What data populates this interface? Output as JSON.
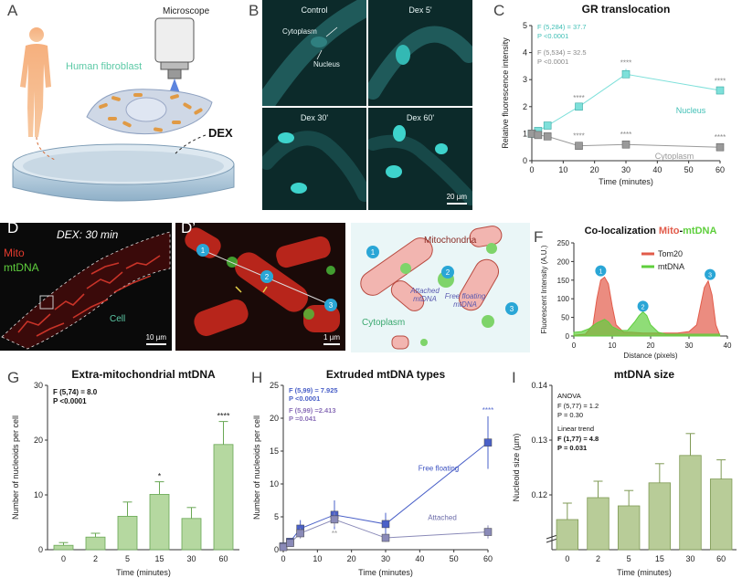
{
  "panel_letters": {
    "A": "A",
    "B": "B",
    "C": "C",
    "D": "D",
    "Dp": "D’",
    "E": "E",
    "F": "F",
    "G": "G",
    "H": "H",
    "I": "I"
  },
  "colors": {
    "nucleus": "#7ee0da",
    "cytoplasm": "#9a9a9a",
    "mito": "#e25b4a",
    "mtdna": "#5fcf3d",
    "free": "#4a60c8",
    "attached": "#8a8ab8",
    "bar": "#b5d8a0",
    "barI": "#b8cc98",
    "bg": "#eaf6f7"
  },
  "panelA": {
    "microscope": "Microscope",
    "fibroblast": "Human fibroblast",
    "dex": "DEX"
  },
  "panelB": {
    "captions": [
      "Control",
      "Dex 5'",
      "Dex 30'",
      "Dex 60'"
    ],
    "cytoplasm": "Cytoplasm",
    "nucleus": "Nucleus",
    "scale": "20 µm"
  },
  "panelD": {
    "title": "DEX: 30 min",
    "mito": "Mito",
    "mtdna": "mtDNA",
    "cell": "Cell",
    "scale": "10 µm",
    "scale2": "1 µm",
    "markers": [
      "1",
      "2",
      "3"
    ]
  },
  "panelE": {
    "mitochondria": "Mitochondria",
    "attached": "Attached mtDNA",
    "free": "Free floating mtDNA",
    "cytoplasm": "Cytoplasm",
    "markers": [
      "1",
      "2",
      "3"
    ]
  },
  "chart_data": [
    {
      "id": "C",
      "type": "line",
      "title": "GR translocation",
      "xlabel": "Time (minutes)",
      "ylabel": "Relative fluorescence intensity",
      "xlim": [
        0,
        60
      ],
      "ylim": [
        0,
        5
      ],
      "xticks": [
        0,
        10,
        20,
        30,
        40,
        50,
        60
      ],
      "yticks": [
        0,
        1,
        2,
        3,
        4,
        5
      ],
      "series": [
        {
          "name": "Nucleus",
          "x": [
            0,
            2,
            5,
            15,
            30,
            60
          ],
          "y": [
            1.0,
            1.1,
            1.3,
            2.0,
            3.2,
            2.6
          ],
          "err": [
            0.05,
            0.06,
            0.08,
            0.1,
            0.2,
            0.12
          ],
          "marks": [
            "",
            "",
            "",
            "****",
            "****",
            "****"
          ]
        },
        {
          "name": "Cytoplasm",
          "x": [
            0,
            2,
            5,
            15,
            30,
            60
          ],
          "y": [
            1.0,
            0.95,
            0.9,
            0.55,
            0.6,
            0.5
          ],
          "err": [
            0.05,
            0.05,
            0.05,
            0.04,
            0.05,
            0.04
          ],
          "marks": [
            "",
            "",
            "",
            "****",
            "****",
            "****"
          ]
        }
      ],
      "stats": [
        "F (5,284) = 37.7",
        "P <0.0001",
        "F (5,534) = 32.5",
        "P <0.0001"
      ]
    },
    {
      "id": "F",
      "type": "area",
      "title": "Co-localization Mito-mtDNA",
      "title_parts": [
        "Co-localization ",
        "Mito",
        "-",
        "mtDNA"
      ],
      "xlabel": "Distance (pixels)",
      "ylabel": "Fluorescent Intensity (A.U.)",
      "xlim": [
        0,
        40
      ],
      "ylim": [
        0,
        250
      ],
      "xticks": [
        0,
        10,
        20,
        30,
        40
      ],
      "yticks": [
        0,
        50,
        100,
        150,
        200,
        250
      ],
      "series": [
        {
          "name": "Tom20",
          "x": [
            0,
            3,
            5,
            6,
            7,
            8,
            9,
            10,
            11,
            13,
            15,
            18,
            21,
            24,
            27,
            30,
            32,
            33,
            34,
            35,
            36,
            37,
            38
          ],
          "y": [
            2,
            5,
            30,
            100,
            150,
            158,
            140,
            80,
            30,
            10,
            10,
            8,
            8,
            8,
            8,
            12,
            30,
            80,
            130,
            148,
            110,
            30,
            3
          ]
        },
        {
          "name": "mtDNA",
          "x": [
            0,
            2,
            4,
            6,
            7,
            8,
            9,
            10,
            12,
            14,
            16,
            17,
            18,
            19,
            20,
            22,
            24,
            26,
            30,
            34,
            36,
            38
          ],
          "y": [
            10,
            12,
            20,
            35,
            40,
            45,
            38,
            25,
            15,
            15,
            40,
            55,
            65,
            55,
            30,
            10,
            5,
            5,
            5,
            5,
            5,
            5
          ]
        }
      ],
      "markers": [
        "1",
        "2",
        "3"
      ]
    },
    {
      "id": "G",
      "type": "bar",
      "title": "Extra-mitochondrial mtDNA",
      "xlabel": "Time (minutes)",
      "ylabel": "Number of nucleoids per cell",
      "categories": [
        "0",
        "2",
        "5",
        "15",
        "30",
        "60"
      ],
      "values": [
        0.8,
        2.3,
        6.1,
        10.1,
        5.7,
        19.2
      ],
      "err": [
        0.5,
        0.7,
        2.6,
        2.3,
        2.0,
        4.2
      ],
      "ylim": [
        0,
        30
      ],
      "yticks": [
        0,
        10,
        20,
        30
      ],
      "marks": [
        "",
        "",
        "",
        "*",
        "",
        "****"
      ],
      "stats": [
        "F (5,74) = 8.0",
        "P <0.0001"
      ]
    },
    {
      "id": "H",
      "type": "line",
      "title": "Extruded mtDNA types",
      "xlabel": "Time (minutes)",
      "ylabel": "Number of nucleoids per cell",
      "xlim": [
        0,
        60
      ],
      "ylim": [
        0,
        25
      ],
      "xticks": [
        0,
        10,
        20,
        30,
        40,
        50,
        60
      ],
      "yticks": [
        0,
        5,
        10,
        15,
        20,
        25
      ],
      "series": [
        {
          "name": "Free floating",
          "x": [
            0,
            2,
            5,
            15,
            30,
            60
          ],
          "y": [
            0.5,
            1.2,
            3.2,
            5.3,
            3.9,
            16.3
          ],
          "err": [
            0.3,
            0.5,
            1.3,
            2.2,
            1.7,
            4.0
          ],
          "marks": [
            "",
            "",
            "",
            "",
            "",
            "****"
          ]
        },
        {
          "name": "Attached",
          "x": [
            0,
            2,
            5,
            15,
            30,
            60
          ],
          "y": [
            0.4,
            1.0,
            2.5,
            4.6,
            1.8,
            2.7
          ],
          "err": [
            0.3,
            0.4,
            0.8,
            1.1,
            0.6,
            1.0
          ],
          "marks": [
            "",
            "",
            "",
            "**",
            "",
            ""
          ]
        }
      ],
      "stats": [
        "F (5,99) = 7.925",
        "P <0.0001",
        "F (5,99) =2.413",
        "P =0.041"
      ]
    },
    {
      "id": "I",
      "type": "bar",
      "title": "mtDNA size",
      "xlabel": "Time (minutes)",
      "ylabel": "Nucleoid size (µm)",
      "categories": [
        "0",
        "2",
        "5",
        "15",
        "30",
        "60"
      ],
      "values": [
        0.1155,
        0.1195,
        0.118,
        0.1222,
        0.1272,
        0.1229
      ],
      "err": [
        0.003,
        0.003,
        0.0028,
        0.0035,
        0.004,
        0.0035
      ],
      "ylim": [
        0.11,
        0.14
      ],
      "yticks": [
        0.12,
        0.13,
        0.14
      ],
      "axis_break": true,
      "stats": [
        "ANOVA",
        "F (5,77) = 1.2",
        "P = 0.30",
        "Linear trend",
        "F (1,77) = 4.8",
        "P = 0.031"
      ]
    }
  ]
}
